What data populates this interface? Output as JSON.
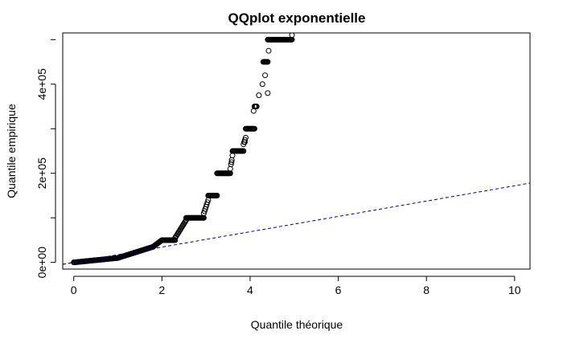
{
  "chart_data": {
    "type": "scatter",
    "title": "QQplot exponentielle",
    "xlabel": "Quantile théorique",
    "ylabel": "Quantile empirique",
    "xlim": [
      -0.25,
      10.35
    ],
    "ylim": [
      -15000,
      515000
    ],
    "x_ticks": [
      {
        "value": 0,
        "label": "0"
      },
      {
        "value": 2,
        "label": "2"
      },
      {
        "value": 4,
        "label": "4"
      },
      {
        "value": 6,
        "label": "6"
      },
      {
        "value": 8,
        "label": "8"
      },
      {
        "value": 10,
        "label": "10"
      }
    ],
    "y_ticks": [
      {
        "value": 0,
        "label": "0e+00"
      },
      {
        "value": 200000,
        "label": "2e+05"
      },
      {
        "value": 400000,
        "label": "4e+05"
      }
    ],
    "reference_line": {
      "style": "dashed",
      "color": "#00008b",
      "intercept": 0,
      "slope": 17200
    },
    "grid": false,
    "legend": "none",
    "point_color": "#000000",
    "segments": [
      {
        "x0": 0.0,
        "x1": 1.0,
        "y0": 0,
        "y1": 10000
      },
      {
        "x0": 1.0,
        "x1": 1.8,
        "y0": 10000,
        "y1": 35000
      },
      {
        "x0": 1.8,
        "x1": 2.0,
        "y0": 35000,
        "y1": 50000
      },
      {
        "x0": 2.0,
        "x1": 2.3,
        "y0": 50000,
        "y1": 50000
      },
      {
        "x0": 2.3,
        "x1": 2.55,
        "y0": 55000,
        "y1": 95000
      },
      {
        "x0": 2.55,
        "x1": 2.95,
        "y0": 100000,
        "y1": 100000
      },
      {
        "x0": 2.95,
        "x1": 3.05,
        "y0": 110000,
        "y1": 140000
      },
      {
        "x0": 3.05,
        "x1": 3.25,
        "y0": 150000,
        "y1": 150000
      },
      {
        "x0": 3.25,
        "x1": 3.55,
        "y0": 200000,
        "y1": 200000
      },
      {
        "x0": 3.55,
        "x1": 3.6,
        "y0": 210000,
        "y1": 240000
      },
      {
        "x0": 3.6,
        "x1": 3.85,
        "y0": 250000,
        "y1": 250000
      },
      {
        "x0": 3.85,
        "x1": 3.9,
        "y0": 265000,
        "y1": 280000
      },
      {
        "x0": 3.9,
        "x1": 4.1,
        "y0": 300000,
        "y1": 300000
      },
      {
        "x0": 4.1,
        "x1": 4.15,
        "y0": 350000,
        "y1": 350000
      },
      {
        "x0": 4.3,
        "x1": 4.4,
        "y0": 450000,
        "y1": 450000
      },
      {
        "x0": 4.4,
        "x1": 4.95,
        "y0": 500000,
        "y1": 500000
      }
    ],
    "points": [
      {
        "x": 4.2,
        "y": 375000
      },
      {
        "x": 4.28,
        "y": 400000
      },
      {
        "x": 4.34,
        "y": 420000
      },
      {
        "x": 4.42,
        "y": 475000
      },
      {
        "x": 4.95,
        "y": 510000
      },
      {
        "x": 4.4,
        "y": 380000
      },
      {
        "x": 4.08,
        "y": 340000
      },
      {
        "x": 3.58,
        "y": 225000
      },
      {
        "x": 3.88,
        "y": 270000
      }
    ]
  }
}
